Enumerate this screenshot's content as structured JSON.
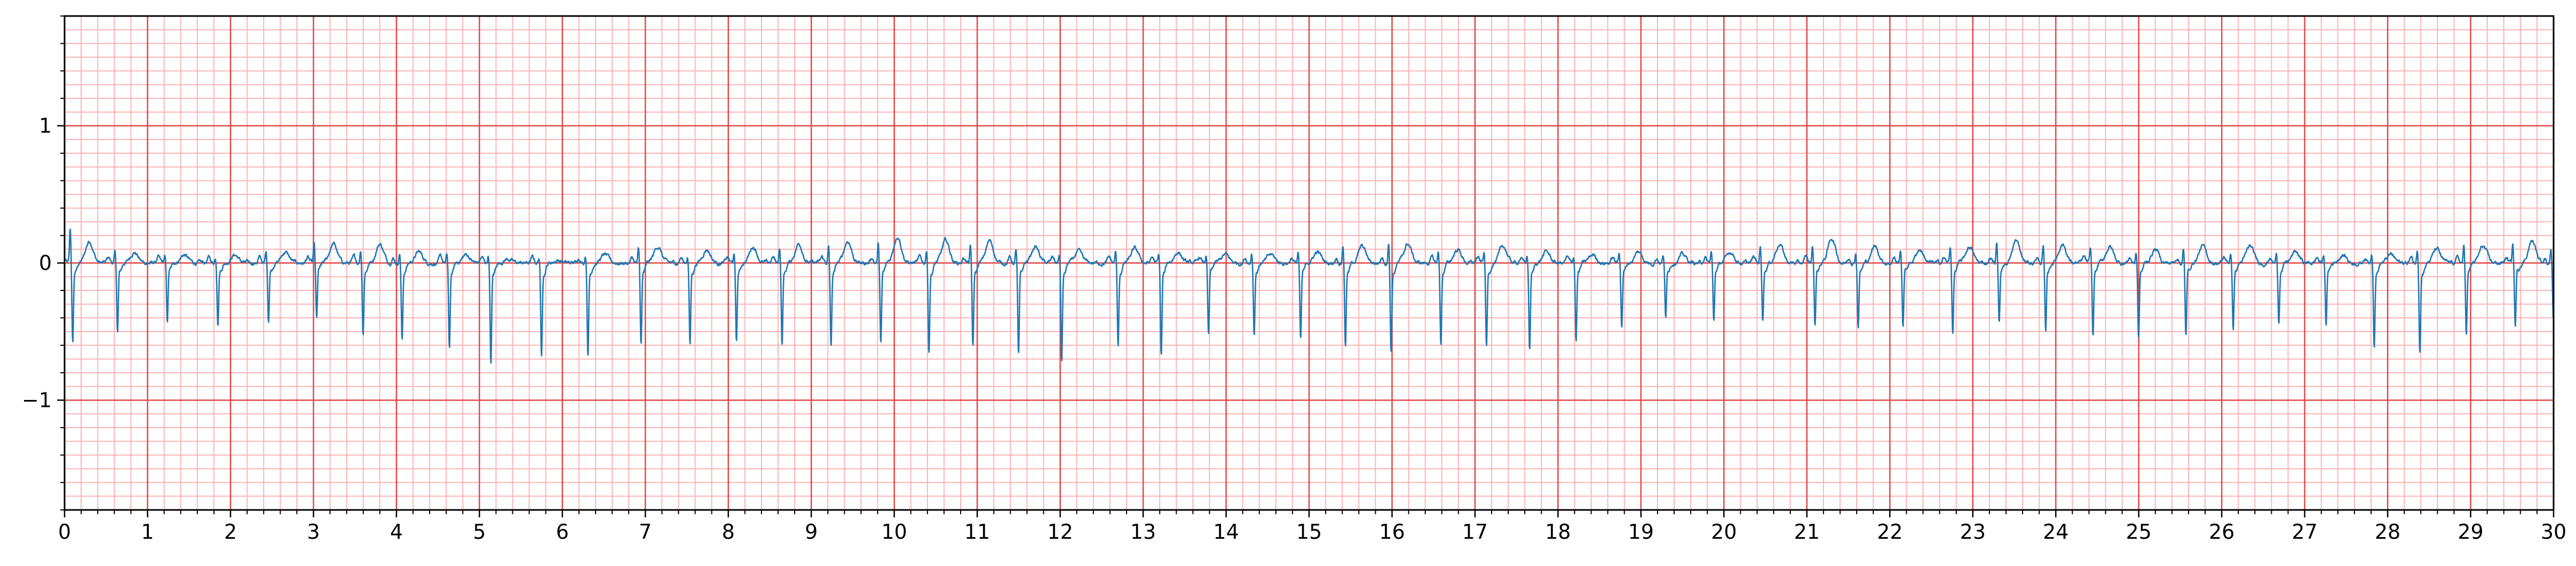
{
  "chart_data": {
    "type": "line",
    "title": "",
    "xlabel": "",
    "ylabel": "",
    "xlim": [
      0,
      30
    ],
    "ylim": [
      -1.8,
      1.8
    ],
    "x_ticks": [
      "0",
      "1",
      "2",
      "3",
      "4",
      "5",
      "6",
      "7",
      "8",
      "9",
      "10",
      "11",
      "12",
      "13",
      "14",
      "15",
      "16",
      "17",
      "18",
      "19",
      "20",
      "21",
      "22",
      "23",
      "24",
      "25",
      "26",
      "27",
      "28",
      "29",
      "30"
    ],
    "y_ticks": [
      {
        "value": 1,
        "label": "1"
      },
      {
        "value": 0,
        "label": "0"
      },
      {
        "value": -1,
        "label": "−1"
      }
    ],
    "grid": {
      "major": true,
      "minor": true,
      "x_major_step": 1,
      "x_minor_step": 0.2,
      "y_major_step": 1,
      "y_minor_step": 0.1,
      "major_color": "#e34646",
      "minor_color": "#ffb3b3"
    },
    "series": [
      {
        "color": "#1f77b4",
        "sample_rate_hz": 200,
        "baseline": 0.0,
        "beat_times_s": [
          0.08,
          0.62,
          1.22,
          1.83,
          2.44,
          3.02,
          3.58,
          4.05,
          4.62,
          5.12,
          5.73,
          6.29,
          6.93,
          7.52,
          8.08,
          8.63,
          9.22,
          9.82,
          10.4,
          10.93,
          11.48,
          12.0,
          12.68,
          13.2,
          13.77,
          14.32,
          14.88,
          15.42,
          15.97,
          16.57,
          17.12,
          17.64,
          18.2,
          18.75,
          19.28,
          19.86,
          20.45,
          21.08,
          21.6,
          22.14,
          22.74,
          23.3,
          23.86,
          24.43,
          24.98,
          25.55,
          26.12,
          26.67,
          27.24,
          27.82,
          28.37,
          28.93,
          29.52,
          29.98
        ],
        "r_amplitudes": [
          0.25,
          0.08,
          0.05,
          0.04,
          0.08,
          0.14,
          0.1,
          0.08,
          0.06,
          0.06,
          0.04,
          0.06,
          0.1,
          0.05,
          0.06,
          0.12,
          0.12,
          0.14,
          0.1,
          0.12,
          0.1,
          0.06,
          0.08,
          0.05,
          0.05,
          0.08,
          0.08,
          0.14,
          0.16,
          0.08,
          0.08,
          0.05,
          0.05,
          0.08,
          0.06,
          0.08,
          0.12,
          0.12,
          0.08,
          0.1,
          0.12,
          0.15,
          0.12,
          0.1,
          0.08,
          0.1,
          0.08,
          0.06,
          0.06,
          0.08,
          0.1,
          0.12,
          0.14,
          0.12
        ],
        "s_amplitudes": [
          -0.57,
          -0.5,
          -0.42,
          -0.43,
          -0.41,
          -0.4,
          -0.5,
          -0.55,
          -0.62,
          -0.72,
          -0.66,
          -0.65,
          -0.58,
          -0.58,
          -0.56,
          -0.58,
          -0.6,
          -0.58,
          -0.63,
          -0.6,
          -0.66,
          -0.7,
          -0.6,
          -0.66,
          -0.52,
          -0.5,
          -0.55,
          -0.58,
          -0.62,
          -0.58,
          -0.6,
          -0.62,
          -0.55,
          -0.45,
          -0.4,
          -0.42,
          -0.4,
          -0.44,
          -0.45,
          -0.45,
          -0.5,
          -0.42,
          -0.5,
          -0.52,
          -0.54,
          -0.52,
          -0.48,
          -0.42,
          -0.45,
          -0.58,
          -0.62,
          -0.5,
          -0.45,
          -0.4
        ],
        "t_amplitudes": [
          0.16,
          0.08,
          0.06,
          0.06,
          0.08,
          0.14,
          0.14,
          0.08,
          0.06,
          0.03,
          0.02,
          0.06,
          0.12,
          0.1,
          0.12,
          0.14,
          0.16,
          0.2,
          0.16,
          0.16,
          0.12,
          0.08,
          0.1,
          0.08,
          0.06,
          0.06,
          0.08,
          0.12,
          0.14,
          0.1,
          0.12,
          0.08,
          0.06,
          0.08,
          0.06,
          0.08,
          0.14,
          0.18,
          0.12,
          0.1,
          0.12,
          0.16,
          0.14,
          0.12,
          0.1,
          0.12,
          0.12,
          0.08,
          0.06,
          0.06,
          0.1,
          0.12,
          0.16,
          0.12
        ],
        "noise_amplitude": 0.02
      }
    ]
  }
}
